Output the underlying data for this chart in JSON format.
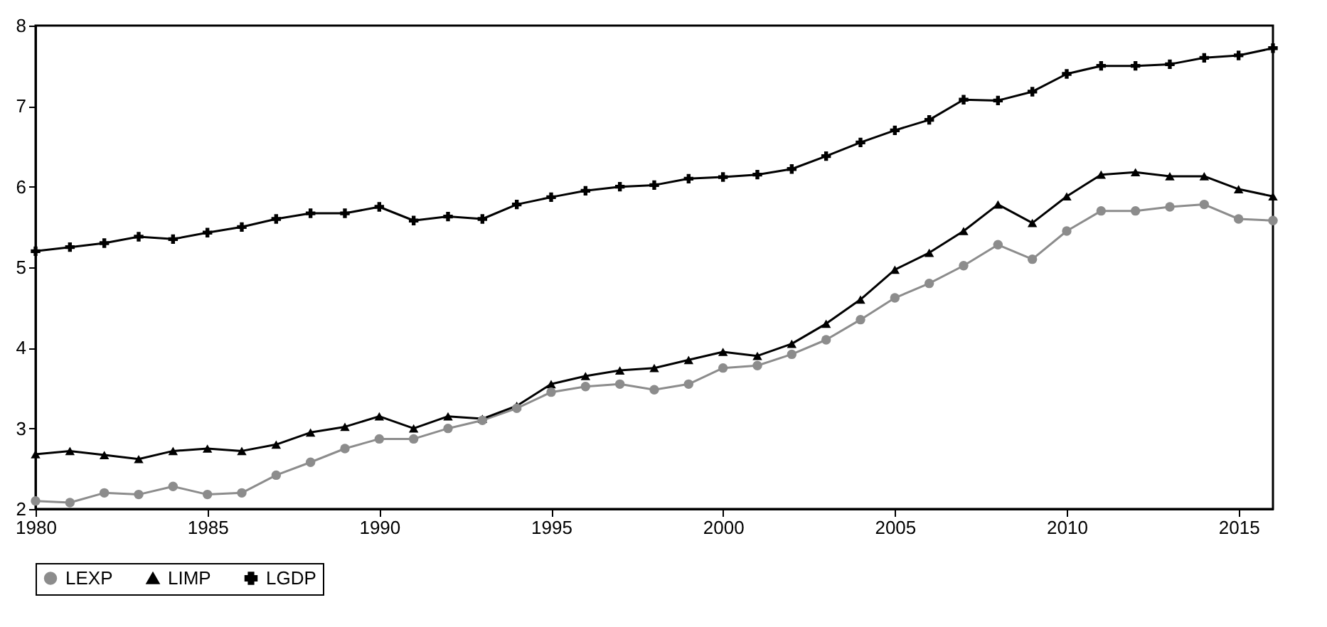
{
  "chart_data": {
    "type": "line",
    "x": [
      1980,
      1981,
      1982,
      1983,
      1984,
      1985,
      1986,
      1987,
      1988,
      1989,
      1990,
      1991,
      1992,
      1993,
      1994,
      1995,
      1996,
      1997,
      1998,
      1999,
      2000,
      2001,
      2002,
      2003,
      2004,
      2005,
      2006,
      2007,
      2008,
      2009,
      2010,
      2011,
      2012,
      2013,
      2014,
      2015,
      2016
    ],
    "series": [
      {
        "name": "LEXP",
        "color": "#8c8c8c",
        "marker": "circle",
        "values": [
          2.1,
          2.08,
          2.2,
          2.18,
          2.28,
          2.18,
          2.2,
          2.42,
          2.58,
          2.75,
          2.87,
          2.87,
          3.0,
          3.1,
          3.25,
          3.45,
          3.52,
          3.55,
          3.48,
          3.55,
          3.75,
          3.78,
          3.92,
          4.1,
          4.35,
          4.62,
          4.8,
          5.02,
          5.28,
          5.1,
          5.45,
          5.7,
          5.7,
          5.75,
          5.78,
          5.6,
          5.58
        ]
      },
      {
        "name": "LIMP",
        "color": "#000000",
        "marker": "triangle",
        "values": [
          2.68,
          2.72,
          2.67,
          2.62,
          2.72,
          2.75,
          2.72,
          2.8,
          2.95,
          3.02,
          3.15,
          3.0,
          3.15,
          3.12,
          3.28,
          3.55,
          3.65,
          3.72,
          3.75,
          3.85,
          3.95,
          3.9,
          4.05,
          4.3,
          4.6,
          4.97,
          5.18,
          5.45,
          5.78,
          5.55,
          5.88,
          6.15,
          6.18,
          6.13,
          6.13,
          5.97,
          5.88
        ]
      },
      {
        "name": "LGDP",
        "color": "#000000",
        "marker": "cross",
        "values": [
          5.2,
          5.25,
          5.3,
          5.38,
          5.35,
          5.43,
          5.5,
          5.6,
          5.67,
          5.67,
          5.75,
          5.58,
          5.63,
          5.6,
          5.78,
          5.87,
          5.95,
          6.0,
          6.02,
          6.1,
          6.12,
          6.15,
          6.22,
          6.38,
          6.55,
          6.7,
          6.83,
          7.08,
          7.07,
          7.18,
          7.4,
          7.5,
          7.5,
          7.52,
          7.6,
          7.63,
          7.72
        ]
      }
    ],
    "xlim": [
      1980,
      2016
    ],
    "xticks": [
      1980,
      1985,
      1990,
      1995,
      2000,
      2005,
      2010,
      2015
    ],
    "ylim": [
      2,
      8
    ],
    "yticks": [
      2,
      3,
      4,
      5,
      6,
      7,
      8
    ],
    "grid": false,
    "legend": "bottom",
    "line_style": "solid"
  }
}
